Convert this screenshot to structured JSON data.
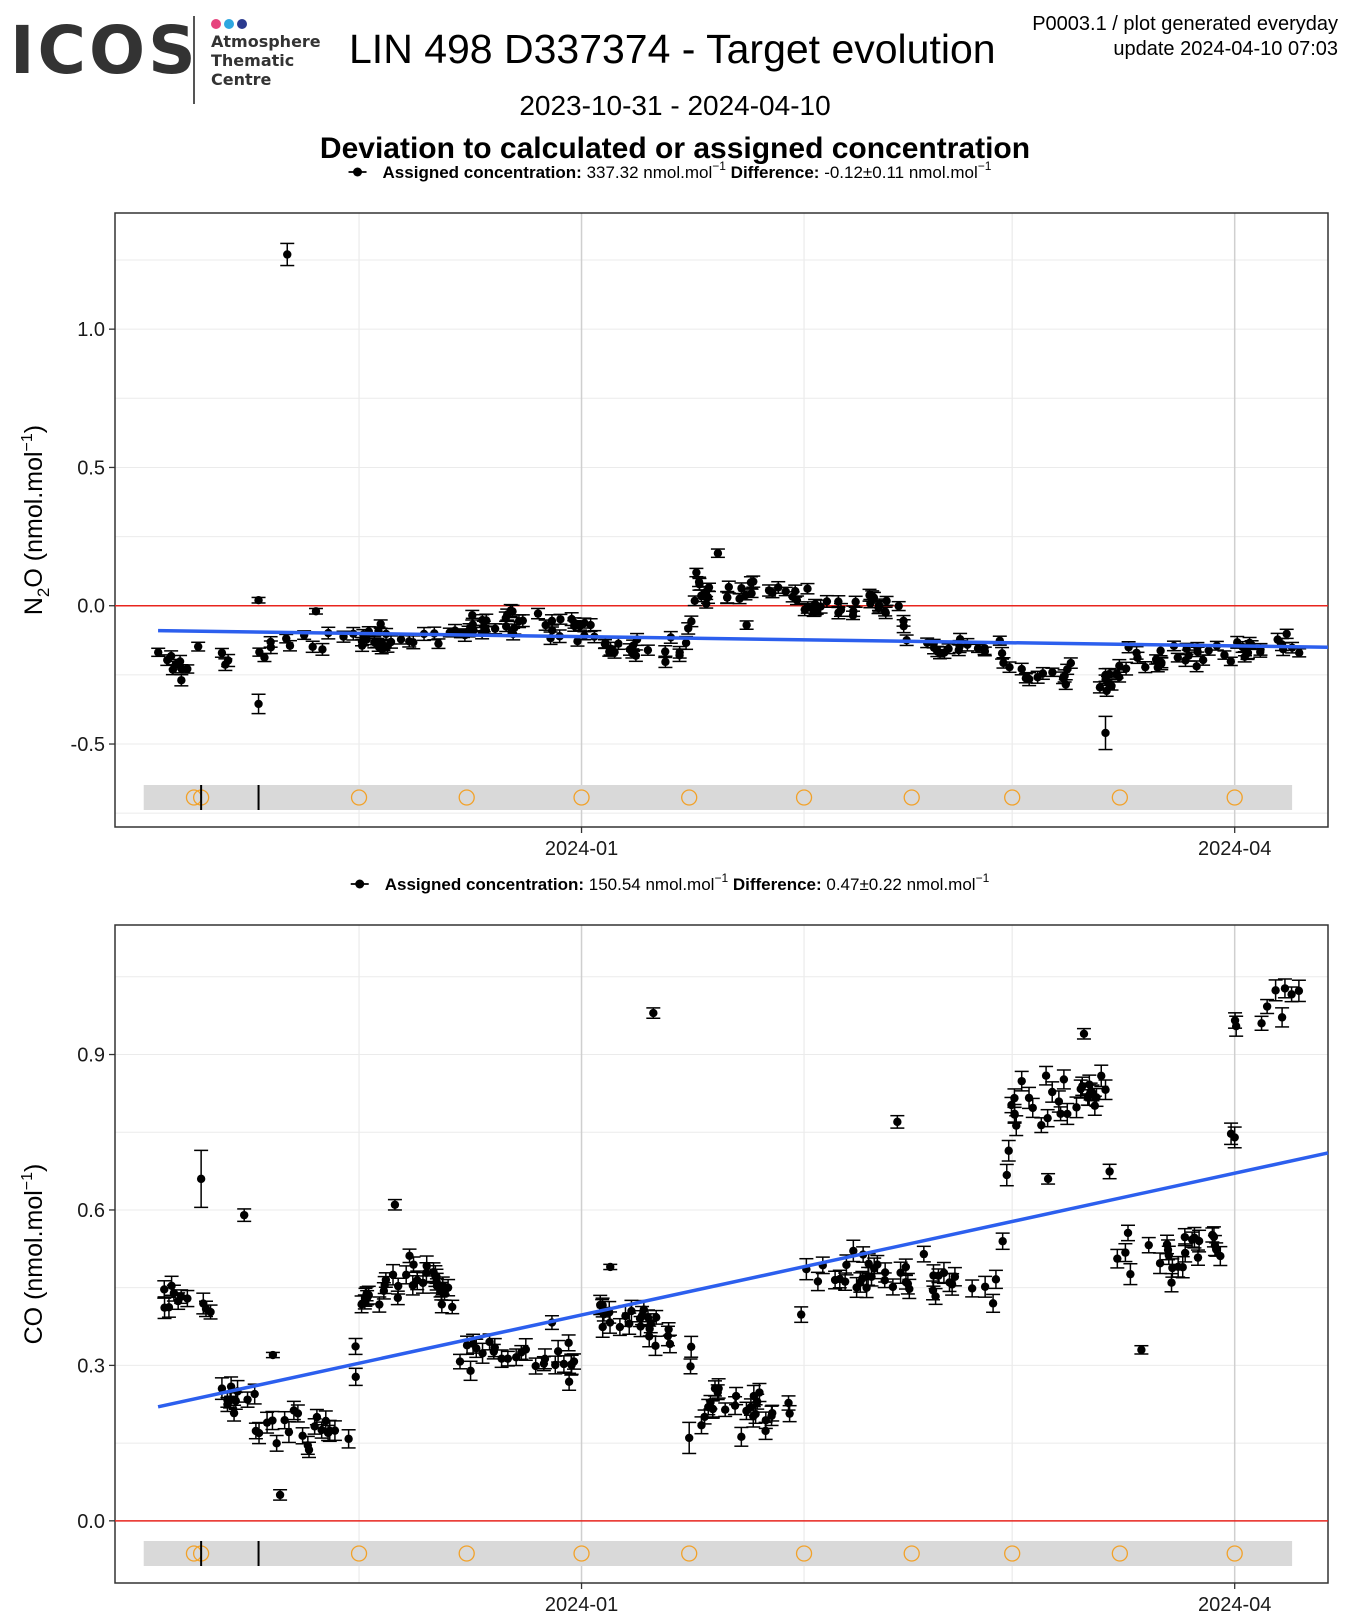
{
  "header": {
    "logo_name": "ICOS",
    "logo_lines": [
      "Atmosphere",
      "Thematic",
      "Centre"
    ],
    "logo_dot_colors": [
      "#e6437d",
      "#2ea7e0",
      "#2b3a8f"
    ],
    "title": "LIN 498 D337374 - Target evolution",
    "period": "2023-10-31 - 2024-04-10",
    "ref_line1": "P0003.1 / plot generated everyday",
    "ref_line2": "update  2024-04-10 07:03",
    "section_title": "Deviation to calculated or assigned concentration"
  },
  "chart_data": [
    {
      "type": "scatter",
      "panel": "N2O",
      "legend": {
        "assigned_label": "Assigned concentration:",
        "assigned_value": "337.32 nmol.mol",
        "difference_label": "Difference:",
        "difference_value": "-0.12±0.11 nmol.mol",
        "unit_exponent": "−1"
      },
      "ylabel": {
        "species": "N",
        "sub": "2",
        "rest": "O (nmol.mol",
        "exp": "−1",
        "close": ")"
      },
      "xlim": [
        "2023-10-31",
        "2024-04-10"
      ],
      "ylim": [
        -0.8,
        1.42
      ],
      "yticks": [
        1.0,
        0.5,
        0.0,
        -0.5
      ],
      "ytick_labels": [
        "1.0",
        "0.5",
        "0.0",
        "-0.5"
      ],
      "xticks": [
        "2024-01-01",
        "2024-04-01"
      ],
      "xtick_labels": [
        "2024-01",
        "2024-04"
      ],
      "minor_gridlines": [
        "2023-12-01",
        "2024-02-01",
        "2024-03-01"
      ],
      "zero_line_color": "#e8251e",
      "trend": {
        "start": [
          "2023-11-03",
          -0.09
        ],
        "end": [
          "2024-04-14",
          -0.15
        ],
        "color": "#2c5fee"
      },
      "anchors": [
        [
          "2023-11-03",
          -0.19
        ],
        [
          "2023-11-06",
          -0.21
        ],
        [
          "2023-11-10",
          -0.19
        ],
        [
          "2023-11-15",
          -0.18
        ],
        [
          "2023-11-20",
          -0.14
        ],
        [
          "2023-11-25",
          -0.12
        ],
        [
          "2023-11-30",
          -0.13
        ],
        [
          "2023-12-05",
          -0.13
        ],
        [
          "2023-12-12",
          -0.12
        ],
        [
          "2023-12-18",
          -0.08
        ],
        [
          "2023-12-24",
          -0.05
        ],
        [
          "2023-12-31",
          -0.07
        ],
        [
          "2024-01-05",
          -0.15
        ],
        [
          "2024-01-15",
          -0.16
        ],
        [
          "2024-01-17",
          0.04
        ],
        [
          "2024-01-25",
          0.06
        ],
        [
          "2024-01-30",
          0.06
        ],
        [
          "2024-02-01",
          0.0
        ],
        [
          "2024-02-14",
          0.0
        ],
        [
          "2024-02-16",
          -0.15
        ],
        [
          "2024-02-28",
          -0.15
        ],
        [
          "2024-03-01",
          -0.26
        ],
        [
          "2024-03-15",
          -0.26
        ],
        [
          "2024-03-17",
          -0.18
        ],
        [
          "2024-03-31",
          -0.17
        ],
        [
          "2024-04-10",
          -0.13
        ]
      ],
      "points": 240,
      "noise": 0.022,
      "errorbar": 0.018,
      "outliers": [
        [
          "2023-11-21",
          1.27,
          0.04
        ],
        [
          "2023-11-17",
          -0.355,
          0.035
        ],
        [
          "2023-11-17",
          0.02,
          0.01
        ],
        [
          "2023-11-25",
          -0.02,
          0.01
        ],
        [
          "2024-03-14",
          -0.46,
          0.06
        ],
        [
          "2024-01-20",
          0.19,
          0.015
        ],
        [
          "2024-01-24",
          -0.07,
          0.015
        ],
        [
          "2024-01-17",
          0.12,
          0.015
        ]
      ],
      "events": {
        "circle_dates": [
          "2023-11-08",
          "2023-11-09",
          "2023-12-01",
          "2023-12-16",
          "2024-01-01",
          "2024-01-16",
          "2024-02-01",
          "2024-02-16",
          "2024-03-01",
          "2024-03-16",
          "2024-04-01"
        ],
        "tick_dates": [
          "2023-11-09",
          "2023-11-17"
        ],
        "circle_color": "#f2a128"
      }
    },
    {
      "type": "scatter",
      "panel": "CO",
      "legend": {
        "assigned_label": "Assigned concentration:",
        "assigned_value": "150.54 nmol.mol",
        "difference_label": "Difference:",
        "difference_value": "0.47±0.22 nmol.mol",
        "unit_exponent": "−1"
      },
      "ylabel": {
        "species": "CO",
        "sub": "",
        "rest": " (nmol.mol",
        "exp": "−1",
        "close": ")"
      },
      "xlim": [
        "2023-10-31",
        "2024-04-10"
      ],
      "ylim": [
        -0.12,
        1.15
      ],
      "yticks": [
        0.9,
        0.6,
        0.3,
        0.0
      ],
      "ytick_labels": [
        "0.9",
        "0.6",
        "0.3",
        "0.0"
      ],
      "xticks": [
        "2024-01-01",
        "2024-04-01"
      ],
      "xtick_labels": [
        "2024-01",
        "2024-04"
      ],
      "minor_gridlines": [
        "2023-12-01",
        "2024-02-01",
        "2024-03-01"
      ],
      "zero_line_color": "#e8251e",
      "trend": {
        "start": [
          "2023-11-03",
          0.22
        ],
        "end": [
          "2024-04-14",
          0.71
        ],
        "color": "#2c5fee"
      },
      "anchors": [
        [
          "2023-11-03",
          0.42
        ],
        [
          "2023-11-08",
          0.43
        ],
        [
          "2023-11-11",
          0.43
        ],
        [
          "2023-11-12",
          0.25
        ],
        [
          "2023-11-16",
          0.2
        ],
        [
          "2023-11-20",
          0.17
        ],
        [
          "2023-11-30",
          0.17
        ],
        [
          "2023-12-01",
          0.42
        ],
        [
          "2023-12-08",
          0.48
        ],
        [
          "2023-12-12",
          0.46
        ],
        [
          "2023-12-14",
          0.42
        ],
        [
          "2023-12-15",
          0.33
        ],
        [
          "2023-12-20",
          0.32
        ],
        [
          "2023-12-31",
          0.31
        ],
        [
          "2024-01-01",
          0.43
        ],
        [
          "2024-01-08",
          0.39
        ],
        [
          "2024-01-13",
          0.36
        ],
        [
          "2024-01-15",
          0.4
        ],
        [
          "2024-01-17",
          0.24
        ],
        [
          "2024-01-25",
          0.22
        ],
        [
          "2024-01-30",
          0.22
        ],
        [
          "2024-02-01",
          0.47
        ],
        [
          "2024-02-15",
          0.47
        ],
        [
          "2024-02-28",
          0.45
        ],
        [
          "2024-03-01",
          0.8
        ],
        [
          "2024-03-10",
          0.81
        ],
        [
          "2024-03-14",
          0.84
        ],
        [
          "2024-03-15",
          0.55
        ],
        [
          "2024-03-20",
          0.5
        ],
        [
          "2024-03-31",
          0.56
        ],
        [
          "2024-04-01",
          0.96
        ],
        [
          "2024-04-10",
          1.02
        ]
      ],
      "points": 260,
      "noise": 0.02,
      "errorbar": 0.016,
      "outliers": [
        [
          "2023-11-09",
          0.66,
          0.055
        ],
        [
          "2023-11-15",
          0.59,
          0.012
        ],
        [
          "2023-11-20",
          0.05,
          0.01
        ],
        [
          "2024-01-11",
          0.98,
          0.01
        ],
        [
          "2024-02-14",
          0.77,
          0.012
        ],
        [
          "2024-03-19",
          0.33,
          0.008
        ],
        [
          "2024-03-11",
          0.94,
          0.01
        ],
        [
          "2024-01-16",
          0.16,
          0.03
        ],
        [
          "2024-03-06",
          0.66,
          0.01
        ],
        [
          "2023-11-19",
          0.32,
          0.005
        ],
        [
          "2024-04-01",
          0.74,
          0.02
        ],
        [
          "2024-01-05",
          0.49,
          0.005
        ],
        [
          "2023-12-06",
          0.61,
          0.01
        ]
      ],
      "events": {
        "circle_dates": [
          "2023-11-08",
          "2023-11-09",
          "2023-12-01",
          "2023-12-16",
          "2024-01-01",
          "2024-01-16",
          "2024-02-01",
          "2024-02-16",
          "2024-03-01",
          "2024-03-16",
          "2024-04-01"
        ],
        "tick_dates": [
          "2023-11-09",
          "2023-11-17"
        ],
        "circle_color": "#f2a128"
      }
    }
  ]
}
